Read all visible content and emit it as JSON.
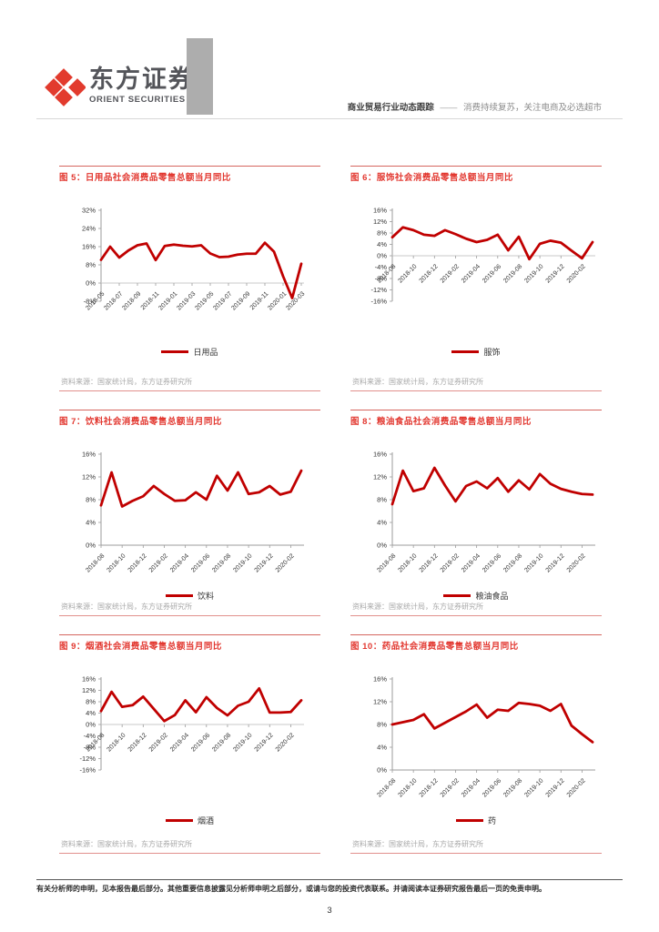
{
  "header": {
    "brand_cn": "东方证券",
    "brand_en": "ORIENT SECURITIES",
    "report_type": "商业贸易行业动态跟踪",
    "separator": "——",
    "report_subtitle": "消费持续复苏，关注电商及必选超市"
  },
  "colors": {
    "line_red": "#C00000",
    "title_red": "#E2372F",
    "rule_red": "#D5655F",
    "logo_red": "#E23B2E",
    "axis_gray": "#9B9B9B",
    "zero_line_gray": "#C9C9C9",
    "label_gray": "#333333",
    "source_gray": "#A8A8A8"
  },
  "chart_data": [
    {
      "type": "line",
      "title": "图 5：日用品社会消费品零售总额当月同比",
      "legend": "日用品",
      "source": "资料来源：国家统计局，东方证券研究所",
      "ylabel_format": "percent",
      "ylim": [
        -8,
        32
      ],
      "y_step": 8,
      "grid": false,
      "legend_position": "bottom",
      "x_ticks": [
        "2018-05",
        "2018-07",
        "2018-09",
        "2018-11",
        "2019-01",
        "2019-03",
        "2019-05",
        "2019-07",
        "2019-09",
        "2019-11",
        "2020-01",
        "2020-03"
      ],
      "categories": [
        "2018-05",
        "2018-06",
        "2018-07",
        "2018-08",
        "2018-09",
        "2018-10",
        "2018-11",
        "2018-12",
        "2019-01",
        "2019-02",
        "2019-03",
        "2019-04",
        "2019-05",
        "2019-06",
        "2019-07",
        "2019-08",
        "2019-09",
        "2019-10",
        "2019-11",
        "2019-12",
        "2020-01",
        "2020-02",
        "2020-03"
      ],
      "values": [
        10.2,
        16.0,
        11.2,
        14.3,
        16.6,
        17.4,
        10.1,
        16.3,
        16.9,
        16.4,
        16.1,
        16.6,
        13.0,
        11.4,
        11.6,
        12.5,
        12.9,
        12.9,
        17.7,
        13.8,
        3.0,
        -6.6,
        8.5
      ]
    },
    {
      "type": "line",
      "title": "图 6：服饰社会消费品零售总额当月同比",
      "legend": "服饰",
      "source": "资料来源：国家统计局，东方证券研究所",
      "ylabel_format": "percent",
      "ylim": [
        -16,
        16
      ],
      "y_step": 4,
      "grid": false,
      "legend_position": "bottom",
      "x_ticks": [
        "2018-08",
        "2018-10",
        "2018-12",
        "2019-02",
        "2019-04",
        "2019-06",
        "2019-08",
        "2019-10",
        "2019-12",
        "2020-02"
      ],
      "categories": [
        "2018-08",
        "2018-09",
        "2018-10",
        "2018-11",
        "2018-12",
        "2019-01",
        "2019-02",
        "2019-03",
        "2019-04",
        "2019-05",
        "2019-06",
        "2019-07",
        "2019-08",
        "2019-09",
        "2019-10",
        "2019-11",
        "2019-12",
        "2020-01",
        "2020-02",
        "2020-03"
      ],
      "values": [
        6.5,
        10.0,
        9.0,
        7.4,
        7.0,
        9.0,
        7.6,
        6.0,
        4.8,
        5.6,
        7.4,
        1.9,
        6.7,
        -1.2,
        4.2,
        5.3,
        4.6,
        1.8,
        -0.9,
        4.8
      ]
    },
    {
      "type": "line",
      "title": "图 7：饮料社会消费品零售总额当月同比",
      "legend": "饮料",
      "source": "资料来源：国家统计局，东方证券研究所",
      "ylabel_format": "percent",
      "ylim": [
        0,
        16
      ],
      "y_step": 4,
      "grid": false,
      "legend_position": "bottom",
      "x_ticks": [
        "2018-08",
        "2018-10",
        "2018-12",
        "2019-02",
        "2019-04",
        "2019-06",
        "2019-08",
        "2019-10",
        "2019-12",
        "2020-02"
      ],
      "categories": [
        "2018-08",
        "2018-09",
        "2018-10",
        "2018-11",
        "2018-12",
        "2019-01",
        "2019-02",
        "2019-03",
        "2019-04",
        "2019-05",
        "2019-06",
        "2019-07",
        "2019-08",
        "2019-09",
        "2019-10",
        "2019-11",
        "2019-12",
        "2020-01",
        "2020-02",
        "2020-03"
      ],
      "values": [
        7.0,
        12.8,
        6.8,
        7.8,
        8.6,
        10.4,
        9.0,
        7.8,
        7.9,
        9.3,
        8.0,
        12.2,
        9.6,
        12.8,
        9.0,
        9.3,
        10.4,
        8.9,
        9.4,
        13.1
      ]
    },
    {
      "type": "line",
      "title": "图 8：粮油食品社会消费品零售总额当月同比",
      "legend": "粮油食品",
      "source": "资料来源：国家统计局，东方证券研究所",
      "ylabel_format": "percent",
      "ylim": [
        0,
        16
      ],
      "y_step": 4,
      "grid": false,
      "legend_position": "bottom",
      "x_ticks": [
        "2018-08",
        "2018-10",
        "2018-12",
        "2019-02",
        "2019-04",
        "2019-06",
        "2019-08",
        "2019-10",
        "2019-12",
        "2020-02"
      ],
      "categories": [
        "2018-08",
        "2018-09",
        "2018-10",
        "2018-11",
        "2018-12",
        "2019-01",
        "2019-02",
        "2019-03",
        "2019-04",
        "2019-05",
        "2019-06",
        "2019-07",
        "2019-08",
        "2019-09",
        "2019-10",
        "2019-11",
        "2019-12",
        "2020-01",
        "2020-02",
        "2020-03"
      ],
      "values": [
        7.2,
        13.1,
        9.5,
        10.0,
        13.6,
        10.5,
        7.7,
        10.4,
        11.2,
        10.0,
        11.8,
        9.4,
        11.4,
        9.8,
        12.5,
        10.8,
        9.9,
        9.4,
        9.0,
        8.9
      ]
    },
    {
      "type": "line",
      "title": "图 9：烟酒社会消费品零售总额当月同比",
      "legend": "烟酒",
      "source": "资料来源：国家统计局，东方证券研究所",
      "ylabel_format": "percent",
      "ylim": [
        -16,
        16
      ],
      "y_step": 4,
      "grid": false,
      "legend_position": "bottom",
      "x_ticks": [
        "2018-08",
        "2018-10",
        "2018-12",
        "2019-02",
        "2019-04",
        "2019-06",
        "2019-08",
        "2019-10",
        "2019-12",
        "2020-02"
      ],
      "categories": [
        "2018-08",
        "2018-09",
        "2018-10",
        "2018-11",
        "2018-12",
        "2019-01",
        "2019-02",
        "2019-03",
        "2019-04",
        "2019-05",
        "2019-06",
        "2019-07",
        "2019-08",
        "2019-09",
        "2019-10",
        "2019-11",
        "2019-12",
        "2020-01",
        "2020-02",
        "2020-03"
      ],
      "values": [
        4.7,
        11.5,
        6.2,
        6.8,
        9.8,
        5.5,
        1.2,
        3.3,
        8.5,
        4.3,
        9.6,
        5.8,
        3.2,
        6.6,
        8.0,
        12.7,
        4.2,
        4.2,
        4.4,
        8.5
      ]
    },
    {
      "type": "line",
      "title": "图 10：药品社会消费品零售总额当月同比",
      "legend": "药",
      "source": "资料来源：国家统计局，东方证券研究所",
      "ylabel_format": "percent",
      "ylim": [
        0,
        16
      ],
      "y_step": 4,
      "grid": false,
      "legend_position": "bottom",
      "x_ticks": [
        "2018-08",
        "2018-10",
        "2018-12",
        "2019-02",
        "2019-04",
        "2019-06",
        "2019-08",
        "2019-10",
        "2019-12",
        "2020-02"
      ],
      "categories": [
        "2018-08",
        "2018-09",
        "2018-10",
        "2018-11",
        "2018-12",
        "2019-01",
        "2019-02",
        "2019-03",
        "2019-04",
        "2019-05",
        "2019-06",
        "2019-07",
        "2019-08",
        "2019-09",
        "2019-10",
        "2019-11",
        "2019-12",
        "2020-01",
        "2020-02",
        "2020-03"
      ],
      "values": [
        8.0,
        8.4,
        8.8,
        9.8,
        7.3,
        8.3,
        9.3,
        10.3,
        11.5,
        9.2,
        10.6,
        10.4,
        11.8,
        11.6,
        11.3,
        10.4,
        11.6,
        7.8,
        6.3,
        4.9
      ]
    }
  ],
  "footer": {
    "disclaimer": "有关分析师的申明，见本报告最后部分。其他重要信息披露见分析师申明之后部分，或请与您的投资代表联系。并请阅读本证券研究报告最后一页的免责申明。",
    "page_number": "3"
  }
}
